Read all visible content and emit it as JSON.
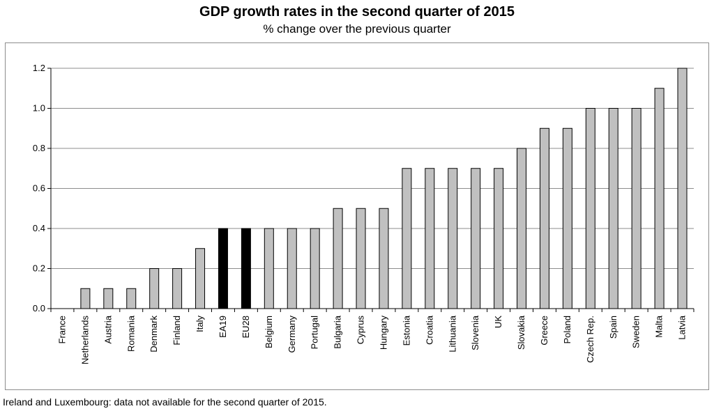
{
  "chart_data": {
    "type": "bar",
    "title": "GDP growth rates in the second quarter of 2015",
    "subtitle": "% change over the previous quarter",
    "xlabel": "",
    "ylabel": "",
    "ylim": [
      0,
      1.2
    ],
    "yticks": [
      "0.0",
      "0.2",
      "0.4",
      "0.6",
      "0.8",
      "1.0",
      "1.2"
    ],
    "grid": true,
    "categories": [
      "France",
      "Netherlands",
      "Austria",
      "Romania",
      "Denmark",
      "Finland",
      "Italy",
      "EA19",
      "EU28",
      "Belgium",
      "Germany",
      "Portugal",
      "Bulgaria",
      "Cyprus",
      "Hungary",
      "Estonia",
      "Croatia",
      "Lithuania",
      "Slovenia",
      "UK",
      "Slovakia",
      "Greece",
      "Poland",
      "Czech Rep.",
      "Spain",
      "Sweden",
      "Malta",
      "Latvia"
    ],
    "values": [
      0.0,
      0.1,
      0.1,
      0.1,
      0.2,
      0.2,
      0.3,
      0.4,
      0.4,
      0.4,
      0.4,
      0.4,
      0.5,
      0.5,
      0.5,
      0.7,
      0.7,
      0.7,
      0.7,
      0.7,
      0.8,
      0.9,
      0.9,
      1.0,
      1.0,
      1.0,
      1.1,
      1.2
    ],
    "highlight": [
      "EA19",
      "EU28"
    ],
    "colors": {
      "bar": "#c0c0c0",
      "highlight": "#000000",
      "grid": "#8c8c8c"
    }
  },
  "footnote": "Ireland and Luxembourg: data not available for the second quarter of 2015."
}
